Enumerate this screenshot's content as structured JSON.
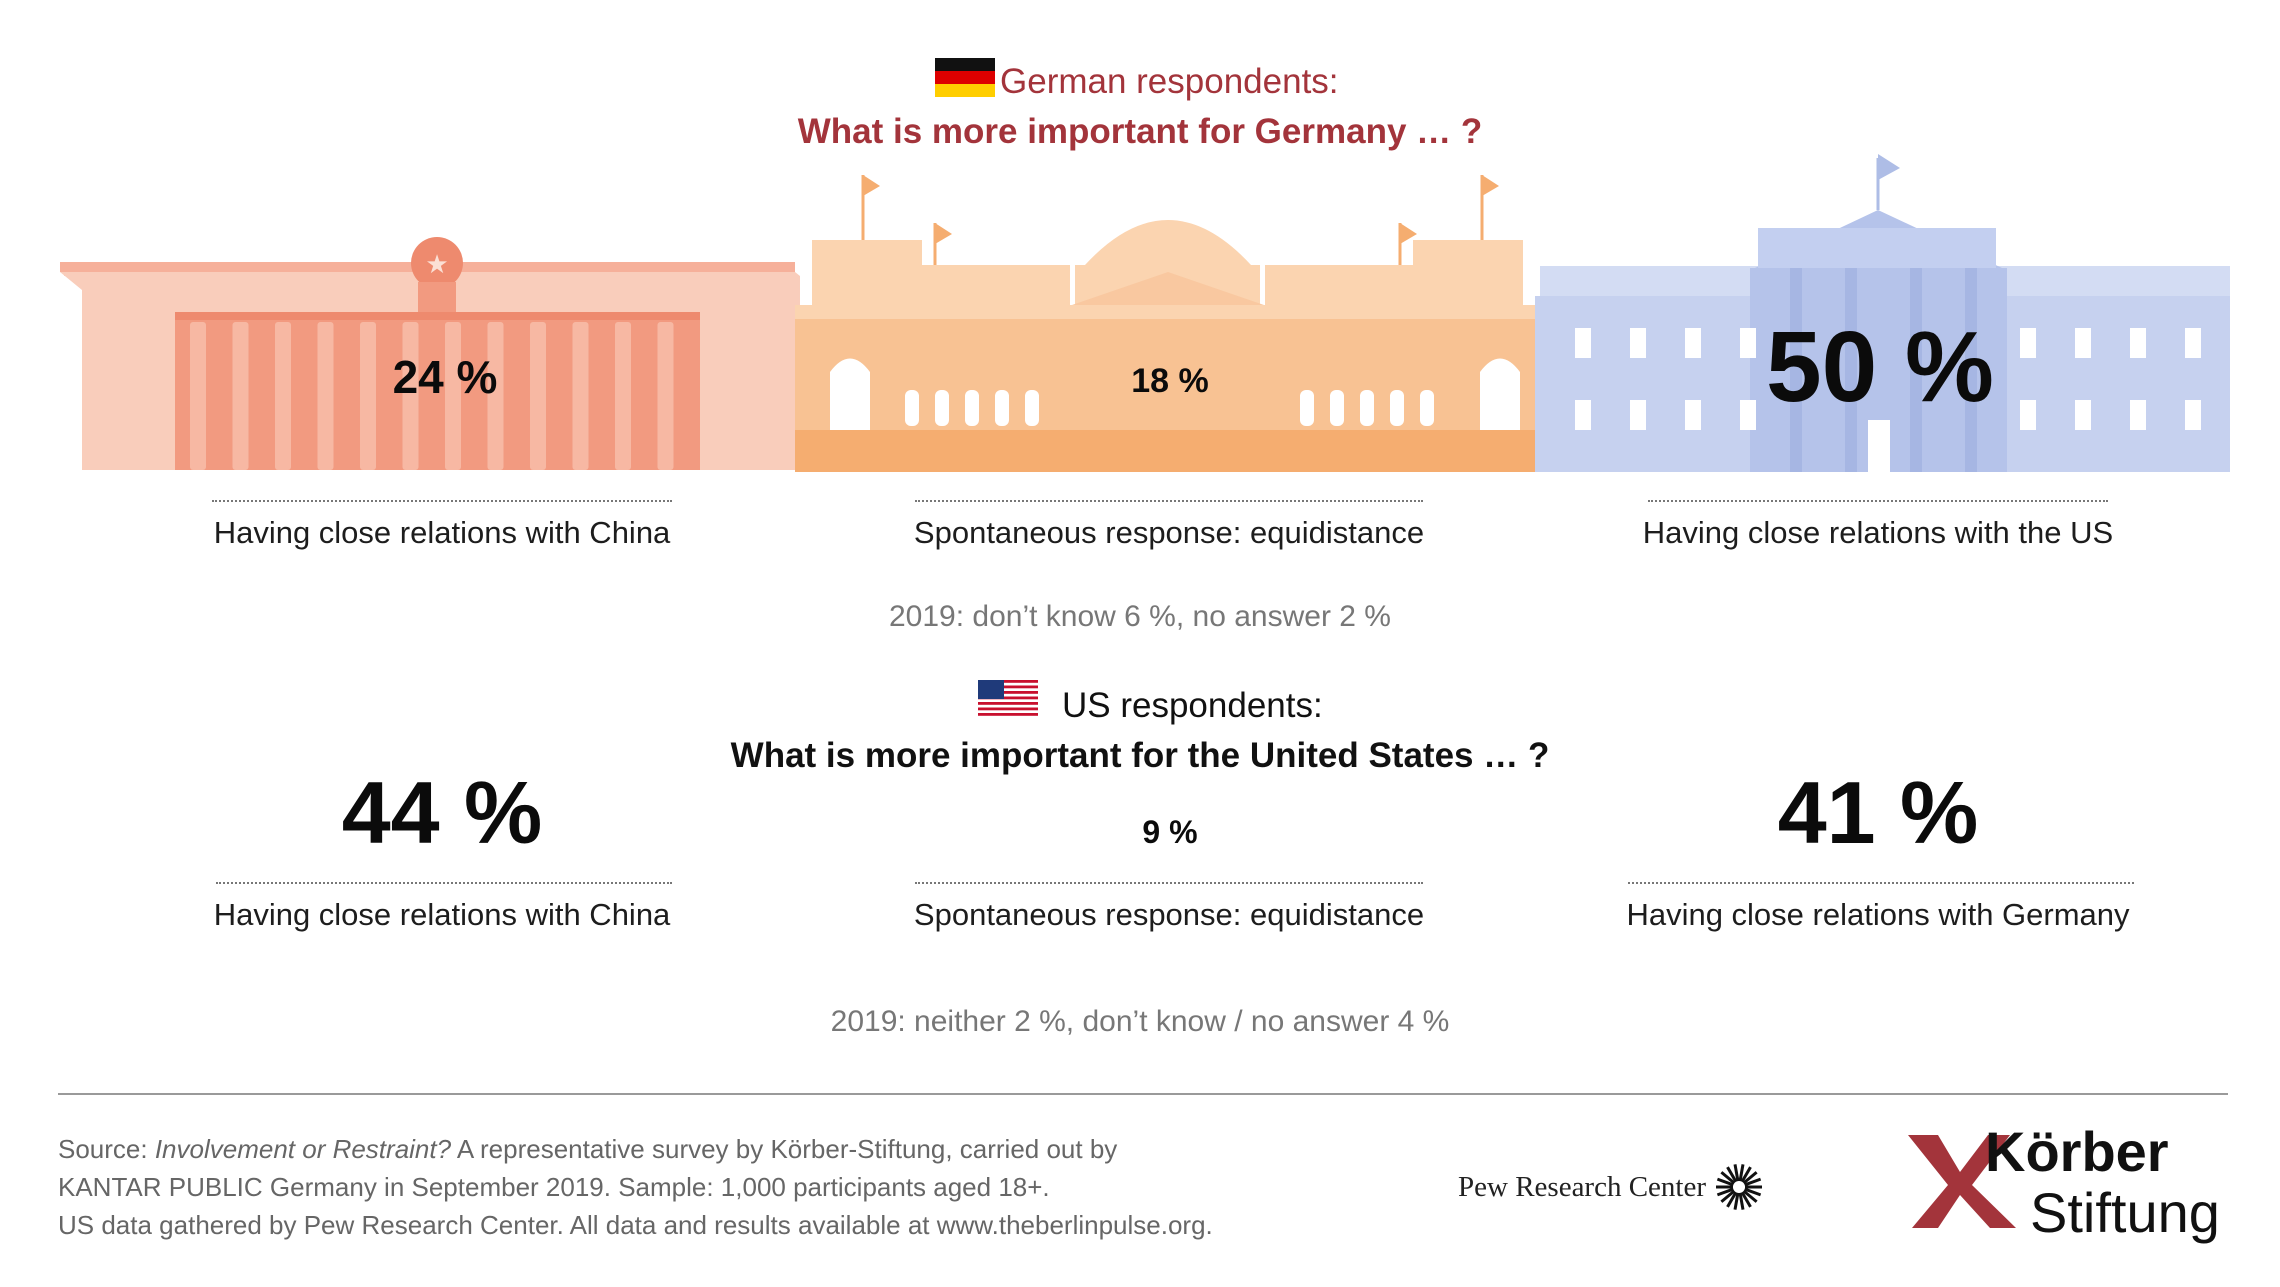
{
  "german_section": {
    "title_line1": "German respondents:",
    "title_line2": "What is more important for Germany … ?",
    "note": "2019: don’t know 6 %, no answer 2 %"
  },
  "us_section": {
    "title_line1": "US respondents:",
    "title_line2": "What is more important for the United States … ?",
    "note": "2019: neither 2 %, don’t know / no answer 4 %"
  },
  "chart_data": [
    {
      "type": "bar",
      "title": "What is more important for Germany … ?",
      "categories": [
        "Having close relations with China",
        "Spontaneous response: equidistance",
        "Having close relations with the US"
      ],
      "values": [
        24,
        18,
        50
      ],
      "value_labels": [
        "24 %",
        "18 %",
        "50 %"
      ],
      "unit": "%"
    },
    {
      "type": "bar",
      "title": "What is more important for the United States … ?",
      "categories": [
        "Having close relations with China",
        "Spontaneous response: equidistance",
        "Having close relations with Germany"
      ],
      "values": [
        44,
        9,
        41
      ],
      "value_labels": [
        "44 %",
        "9 %",
        "41 %"
      ],
      "unit": "%"
    }
  ],
  "source": {
    "prefix": "Source: ",
    "title": "Involvement or Restraint?",
    "line1_rest": " A representative survey by Körber-Stiftung, carried out by",
    "line2": "KANTAR PUBLIC Germany in September 2019. Sample: 1,000 participants aged 18+.",
    "line3": "US data gathered by Pew Research Center. All data and results available at www.theberlinpulse.org."
  },
  "logos": {
    "pew": "Pew Research Center",
    "koerber_line1": "Körber",
    "koerber_line2": "Stiftung"
  },
  "colors": {
    "china": "#f4a087",
    "china_light": "#f9cdbb",
    "reichstag": "#f7b97f",
    "reichstag_light": "#fbd4b0",
    "us": "#aebde6",
    "us_light": "#c9d3ef",
    "accent": "#a3343b"
  }
}
